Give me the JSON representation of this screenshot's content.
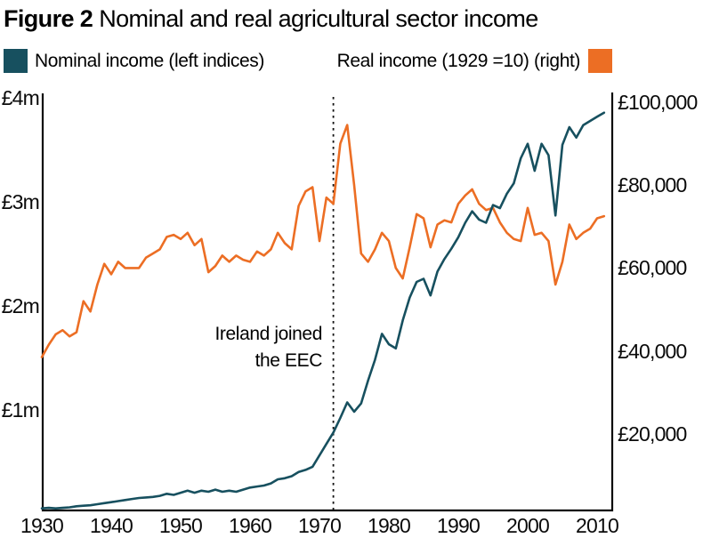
{
  "header": {
    "figure_label": "Figure 2",
    "title": "Nominal and real agricultural sector income"
  },
  "legend": {
    "nominal_label": "Nominal income (left indices)",
    "real_label": "Real income (1929 =10) (right)"
  },
  "annotation": {
    "line1": "Ireland joined",
    "line2": "the EEC",
    "year": 1972
  },
  "chart_data": {
    "type": "line",
    "title": "Nominal and real agricultural sector income",
    "grid": false,
    "event_line": {
      "year": 1972,
      "style": "dotted",
      "color": "#111111"
    },
    "x_axis": {
      "range": [
        1930,
        2012
      ],
      "ticks": [
        1930,
        1940,
        1950,
        1960,
        1970,
        1980,
        1990,
        2000,
        2010
      ]
    },
    "left_axis": {
      "title": "Nominal income (£ million)",
      "range": [
        0,
        4.05
      ],
      "ticks": [
        {
          "label": "£1m",
          "value": 1
        },
        {
          "label": "£2m",
          "value": 2
        },
        {
          "label": "£3m",
          "value": 3
        },
        {
          "label": "£4m",
          "value": 4
        }
      ]
    },
    "right_axis": {
      "title": "Real income (1929 =10), £ thousand",
      "range": [
        0,
        102
      ],
      "ticks": [
        {
          "label": "£20,000",
          "value": 20
        },
        {
          "label": "£40,000",
          "value": 40
        },
        {
          "label": "£60,000",
          "value": 60
        },
        {
          "label": "£80,000",
          "value": 80
        },
        {
          "label": "£100,000",
          "value": 100
        }
      ]
    },
    "years": [
      1930,
      1931,
      1932,
      1933,
      1934,
      1935,
      1936,
      1937,
      1938,
      1939,
      1940,
      1941,
      1942,
      1943,
      1944,
      1945,
      1946,
      1947,
      1948,
      1949,
      1950,
      1951,
      1952,
      1953,
      1954,
      1955,
      1956,
      1957,
      1958,
      1959,
      1960,
      1961,
      1962,
      1963,
      1964,
      1965,
      1966,
      1967,
      1968,
      1969,
      1970,
      1971,
      1972,
      1973,
      1974,
      1975,
      1976,
      1977,
      1978,
      1979,
      1980,
      1981,
      1982,
      1983,
      1984,
      1985,
      1986,
      1987,
      1988,
      1989,
      1990,
      1991,
      1992,
      1993,
      1994,
      1995,
      1996,
      1997,
      1998,
      1999,
      2000,
      2001,
      2002,
      2003,
      2004,
      2005,
      2006,
      2007,
      2008,
      2009,
      2010,
      2011
    ],
    "series": [
      {
        "name": "Nominal income (left indices)",
        "axis": "left",
        "unit": "£ million",
        "color": "#17505f",
        "values": [
          0.05,
          0.055,
          0.05,
          0.055,
          0.06,
          0.07,
          0.075,
          0.08,
          0.09,
          0.1,
          0.11,
          0.12,
          0.13,
          0.14,
          0.15,
          0.155,
          0.16,
          0.17,
          0.19,
          0.18,
          0.2,
          0.22,
          0.2,
          0.22,
          0.21,
          0.23,
          0.21,
          0.22,
          0.21,
          0.23,
          0.25,
          0.26,
          0.27,
          0.29,
          0.33,
          0.34,
          0.36,
          0.4,
          0.42,
          0.45,
          0.56,
          0.67,
          0.78,
          0.92,
          1.07,
          0.98,
          1.06,
          1.28,
          1.48,
          1.73,
          1.63,
          1.59,
          1.86,
          2.08,
          2.23,
          2.26,
          2.1,
          2.33,
          2.45,
          2.55,
          2.66,
          2.8,
          2.91,
          2.83,
          2.8,
          2.97,
          2.94,
          3.08,
          3.18,
          3.42,
          3.56,
          3.3,
          3.56,
          3.45,
          2.87,
          3.55,
          3.72,
          3.62,
          3.74,
          3.78,
          3.82,
          3.86
        ]
      },
      {
        "name": "Real income (1929 =10) (right)",
        "axis": "right",
        "unit": "£ thousand",
        "color": "#ec6e24",
        "values": [
          38.5,
          41.5,
          44,
          45,
          43.5,
          44.5,
          52,
          49.5,
          56,
          61,
          58.5,
          61.5,
          60,
          60,
          60,
          62.5,
          63.5,
          64.5,
          67.5,
          68,
          67,
          68.5,
          65.5,
          67,
          59,
          60.5,
          63,
          61.5,
          63,
          62,
          61.5,
          64,
          63,
          64.5,
          68.5,
          66,
          64.5,
          75,
          78.5,
          79.5,
          66.5,
          77,
          75.5,
          90,
          94.5,
          80,
          63.5,
          61.5,
          64.5,
          68.5,
          66.5,
          60,
          57.5,
          65,
          73,
          72,
          65,
          70.5,
          71.5,
          71,
          75.5,
          77.5,
          79,
          75.5,
          74,
          74.5,
          71,
          68.5,
          67,
          66.5,
          74.5,
          68,
          68.5,
          66.5,
          56,
          61.5,
          70.5,
          67,
          68.5,
          69.5,
          72,
          72.5
        ]
      }
    ]
  }
}
